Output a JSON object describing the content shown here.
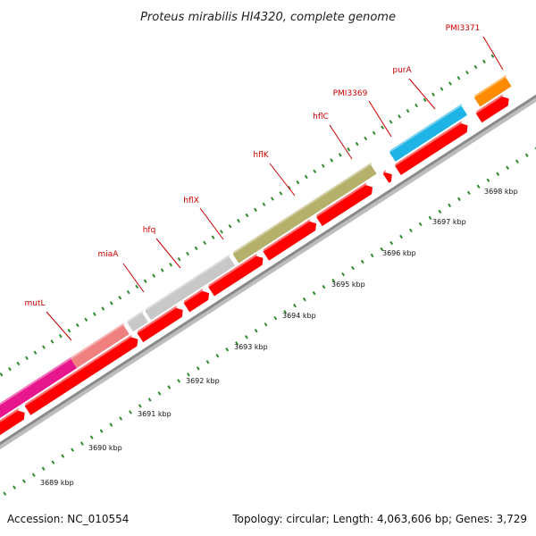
{
  "title": "Proteus mirabilis HI4320, complete genome",
  "footer": {
    "accession": "Accession: NC_010554",
    "summary": "Topology: circular; Length: 4,063,606 bp; Genes: 3,729"
  },
  "colors": {
    "backbone": "#909090",
    "cds_arrow": "#ff0000",
    "tick": "#2e8b2e",
    "label": "#cc0000"
  },
  "genome_map": {
    "scale_labels": [
      "3689 kbp",
      "3690 kbp",
      "3691 kbp",
      "3692 kbp",
      "3693 kbp",
      "3694 kbp",
      "3695 kbp",
      "3696 kbp",
      "3697 kbp",
      "3698 kbp"
    ],
    "genes": [
      {
        "label": "",
        "color": "#6b8e23"
      },
      {
        "label": "mutL",
        "color": "#e8168c"
      },
      {
        "label": "miaA",
        "color": "#f08080"
      },
      {
        "label": "hfq",
        "color": "#c8c8c8"
      },
      {
        "label": "hflX",
        "color": "#c8c8c8"
      },
      {
        "label": "hflK",
        "color": "#b5b06a"
      },
      {
        "label": "hflC",
        "color": "#b5b06a"
      },
      {
        "label": "PMI3369",
        "color": ""
      },
      {
        "label": "purA",
        "color": "#1eb4e6"
      },
      {
        "label": "PMI3371",
        "color": "#ff8c00"
      }
    ]
  }
}
